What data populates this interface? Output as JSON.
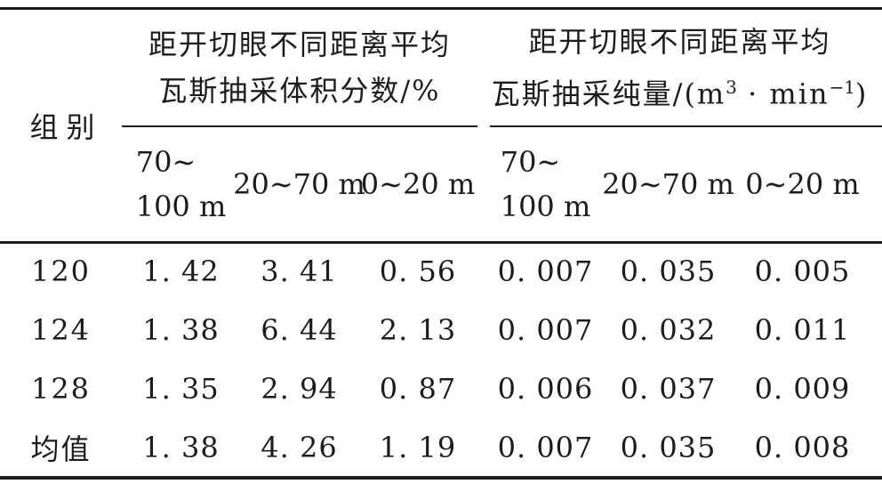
{
  "table": {
    "corner_label": "组别",
    "groups": [
      {
        "title_line1": "距开切眼不同距离平均",
        "title_line2": "瓦斯抽采体积分数/%",
        "subcols": {
          "far_line1": "70∼",
          "far_line2": "100 m",
          "mid": "20∼70 m",
          "near": "0∼20 m"
        }
      },
      {
        "title_line1": "距开切眼不同距离平均",
        "title_line2_parts": {
          "pre": "瓦斯抽采纯量/(m",
          "sup1": "3",
          "mid": " · min",
          "sup2": "−1",
          "post": ")"
        },
        "subcols": {
          "far_line1": "70∼",
          "far_line2": "100 m",
          "mid": "20∼70 m",
          "near": "0∼20 m"
        }
      }
    ],
    "rows": [
      {
        "label": "120",
        "values": [
          "1. 42",
          "3. 41",
          "0. 56",
          "0. 007",
          "0. 035",
          "0. 005"
        ]
      },
      {
        "label": "124",
        "values": [
          "1. 38",
          "6. 44",
          "2. 13",
          "0. 007",
          "0. 032",
          "0. 011"
        ]
      },
      {
        "label": "128",
        "values": [
          "1. 35",
          "2. 94",
          "0. 87",
          "0. 006",
          "0. 037",
          "0. 009"
        ]
      },
      {
        "label": "均值",
        "values": [
          "1. 38",
          "4. 26",
          "1. 19",
          "0. 007",
          "0. 035",
          "0. 008"
        ]
      }
    ],
    "colors": {
      "text": "#1c1c1c",
      "rule": "#1b1b1b",
      "background": "#ffffff"
    }
  }
}
